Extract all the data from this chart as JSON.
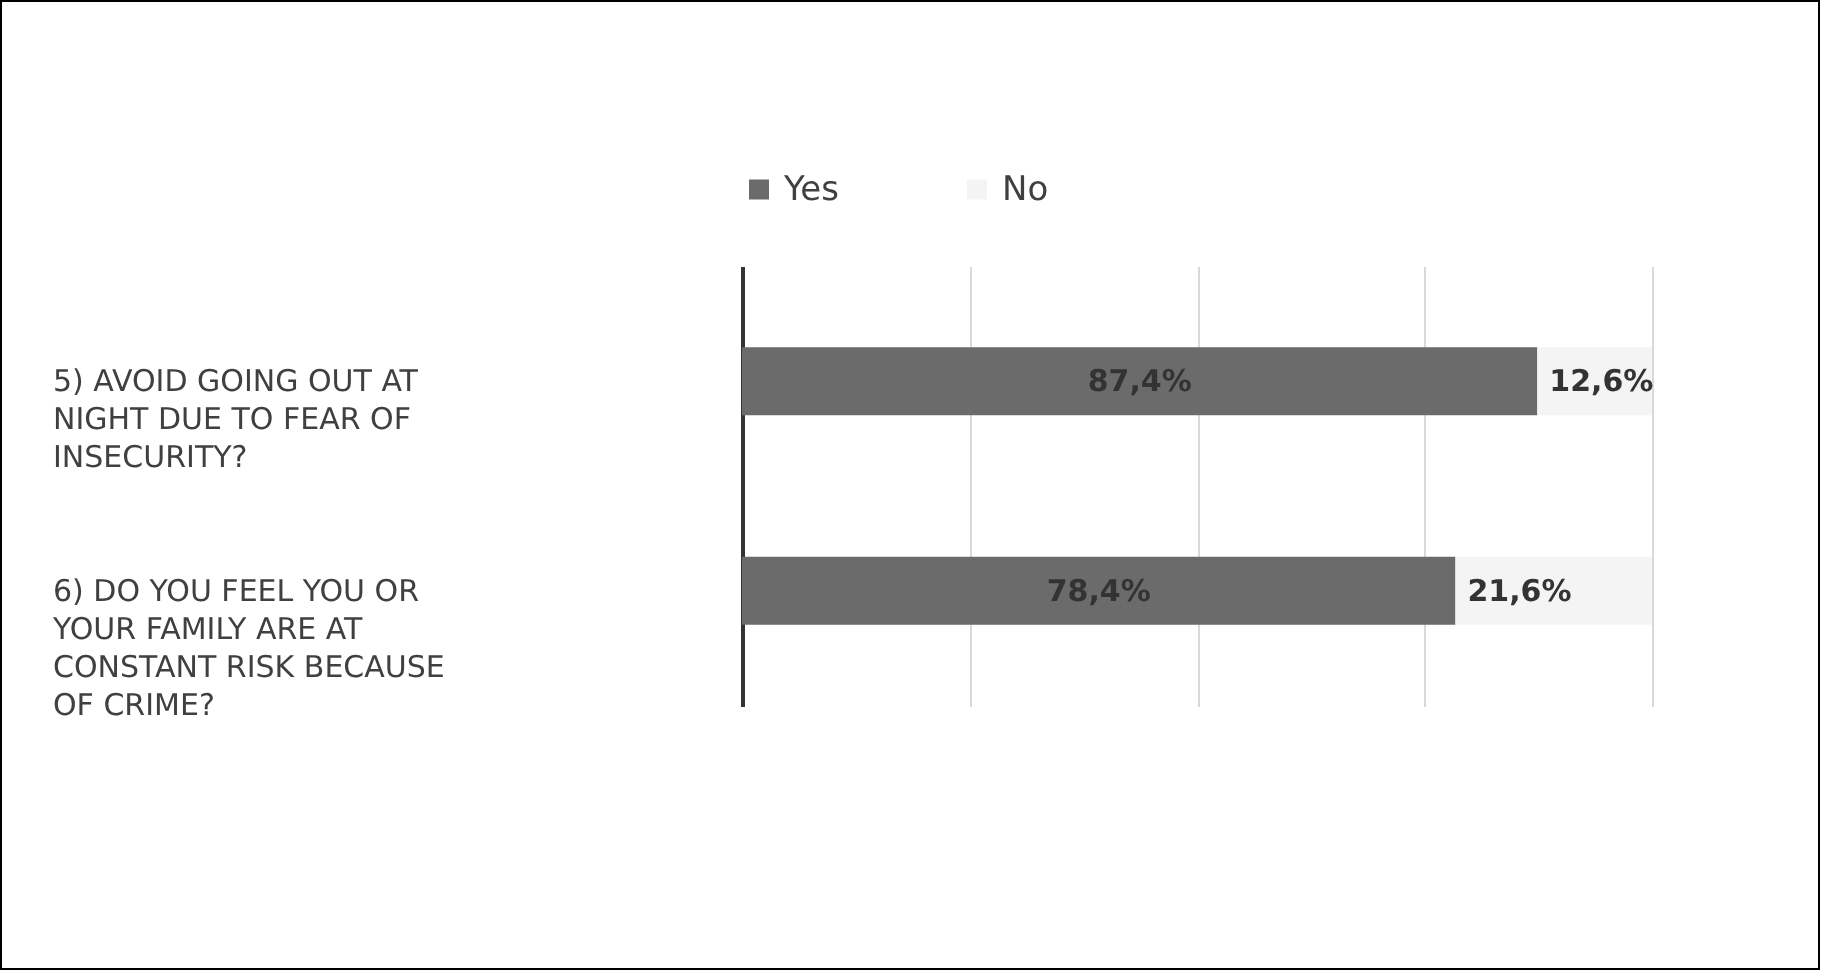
{
  "chart_data": {
    "type": "bar",
    "orientation": "horizontal",
    "stacked": true,
    "categories": [
      "5) AVOID GOING OUT AT NIGHT DUE TO FEAR OF INSECURITY?",
      "6) DO YOU FEEL YOU OR YOUR FAMILY ARE AT CONSTANT RISK BECAUSE OF CRIME?"
    ],
    "series": [
      {
        "name": "Yes",
        "color": "#6b6b6b",
        "values": [
          87.4,
          78.4
        ],
        "value_labels": [
          "87,4%",
          "78,4%"
        ]
      },
      {
        "name": "No",
        "color": "#f4f4f4",
        "values": [
          12.6,
          21.6
        ],
        "value_labels": [
          "12,6%",
          "21,6%"
        ]
      }
    ],
    "xlim": [
      0,
      100
    ],
    "xticks": [
      {
        "value": 0,
        "label": null
      },
      {
        "value": 25,
        "label": null
      },
      {
        "value": 50,
        "label": null
      },
      {
        "value": 75,
        "label": null
      },
      {
        "value": 100,
        "label": null
      }
    ],
    "grid": "x",
    "legend": "top",
    "tick_labels": "y"
  }
}
